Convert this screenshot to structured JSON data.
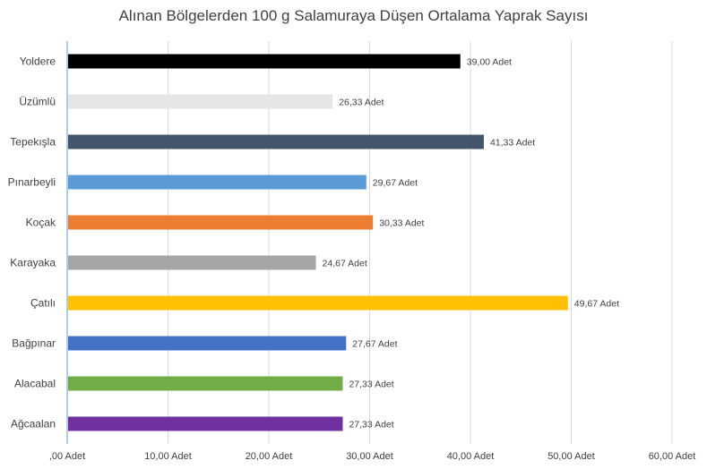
{
  "chart_data": {
    "type": "bar",
    "orientation": "horizontal",
    "title": "Alınan Bölgelerden 100 g Salamuraya Düşen Ortalama Yaprak Sayısı",
    "categories": [
      "Yoldere",
      "Üzümlü",
      "Tepekışla",
      "Pınarbeyli",
      "Koçak",
      "Karayaka",
      "Çatılı",
      "Bağpınar",
      "Alacabal",
      "Ağcaalan"
    ],
    "values": [
      39.0,
      26.33,
      41.33,
      29.67,
      30.33,
      24.67,
      49.67,
      27.67,
      27.33,
      27.33
    ],
    "data_labels": [
      "39,00 Adet",
      "26,33 Adet",
      "41,33 Adet",
      "29,67 Adet",
      "30,33 Adet",
      "24,67 Adet",
      "49,67 Adet",
      "27,67 Adet",
      "27,33 Adet",
      "27,33 Adet"
    ],
    "bar_colors": [
      "#000000",
      "#e7e6e6",
      "#44546a",
      "#5b9bd5",
      "#ed7d31",
      "#a5a5a5",
      "#ffc000",
      "#4472c4",
      "#70ad47",
      "#7030a0"
    ],
    "xlim": [
      0,
      60
    ],
    "x_ticks": [
      0,
      10,
      20,
      30,
      40,
      50,
      60
    ],
    "x_tick_labels": [
      ",00 Adet",
      "10,00 Adet",
      "20,00 Adet",
      "30,00 Adet",
      "40,00 Adet",
      "50,00 Adet",
      "60,00 Adet"
    ],
    "grid": true,
    "gridline_color": "#d9d9d9",
    "axis_line_color": "#5b9bd5"
  }
}
